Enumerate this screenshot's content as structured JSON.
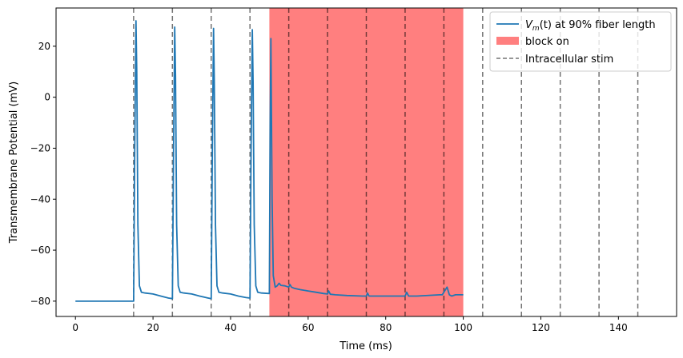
{
  "chart_data": {
    "type": "line",
    "xlabel": "Time (ms)",
    "ylabel": "Transmembrane Potential (mV)",
    "xlim": [
      -5,
      155
    ],
    "ylim": [
      -86,
      35
    ],
    "x_ticks": [
      0,
      20,
      40,
      60,
      80,
      100,
      120,
      140
    ],
    "y_ticks": [
      -80,
      -60,
      -40,
      -20,
      0,
      20
    ],
    "grid": false,
    "legend_position": "top-right",
    "series": [
      {
        "name_prefix": "V",
        "name_sub": "m",
        "name_suffix": "(t) at 90% fiber length",
        "color": "#1f77b4",
        "x": [
          0,
          15,
          15.3,
          15.6,
          15.8,
          16.1,
          16.5,
          17,
          18,
          20,
          22,
          24,
          25,
          25.3,
          25.6,
          25.8,
          26.1,
          26.5,
          27,
          28,
          30,
          32,
          34,
          35,
          35.3,
          35.6,
          35.8,
          36.1,
          36.5,
          37,
          38,
          40,
          42,
          44,
          45,
          45.3,
          45.6,
          45.8,
          46.1,
          46.5,
          47,
          48,
          50,
          50.2,
          50.4,
          50.7,
          51,
          51.5,
          52,
          52.5,
          53,
          54,
          55,
          55.3,
          55.7,
          56.5,
          58,
          60,
          62,
          64,
          65,
          65.3,
          65.7,
          67,
          70,
          74,
          75,
          75.3,
          75.7,
          78,
          84,
          85,
          85.4,
          85.9,
          88,
          94,
          94.6,
          95.2,
          95.8,
          96.4,
          97,
          98,
          100
        ],
        "y": [
          -80,
          -80,
          -20,
          30,
          10,
          -50,
          -74,
          -76.5,
          -76.8,
          -77.2,
          -78,
          -78.8,
          -79,
          -20,
          27.5,
          8,
          -50,
          -74,
          -76.5,
          -76.8,
          -77.2,
          -78,
          -78.7,
          -79,
          -20,
          27,
          7,
          -50,
          -74,
          -76.5,
          -76.8,
          -77.2,
          -78,
          -78.6,
          -78.8,
          -20,
          26.5,
          6,
          -50,
          -74,
          -76.5,
          -76.8,
          -77,
          -10,
          23,
          -40,
          -70,
          -74.5,
          -74,
          -73,
          -73.8,
          -74,
          -74.5,
          -73.5,
          -74.5,
          -75,
          -75.5,
          -76,
          -76.5,
          -77,
          -77.2,
          -76,
          -77.3,
          -77.5,
          -77.8,
          -78,
          -78,
          -76.8,
          -78,
          -78,
          -78,
          -78,
          -76.5,
          -78,
          -78,
          -77.5,
          -77.5,
          -76,
          -74.5,
          -77.5,
          -78,
          -77.5,
          -77.5
        ]
      }
    ],
    "block": {
      "name": "block on",
      "x_start": 50,
      "x_end": 100,
      "color": "#ff0000",
      "opacity": 0.5
    },
    "stim": {
      "name": "Intracellular stim",
      "color": "#000000",
      "x": [
        15,
        25,
        35,
        45,
        55,
        65,
        75,
        85,
        95,
        105,
        115,
        125,
        135,
        145
      ]
    }
  }
}
